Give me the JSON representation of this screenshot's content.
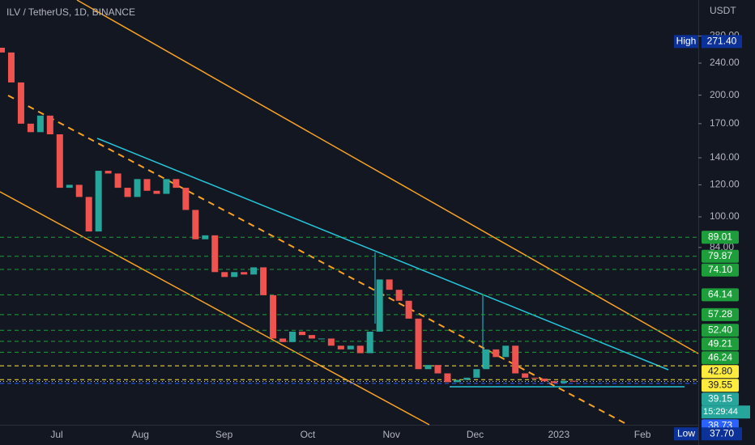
{
  "chart_data": {
    "type": "candlestick",
    "title": "ILV / TetherUS, 1D, BINANCE",
    "currency": "USDT",
    "log_scale": true,
    "up_color": "#26a69a",
    "down_color": "#ef5350",
    "open": [
      262,
      255,
      215,
      170,
      162,
      178,
      160,
      118,
      120,
      112,
      92,
      130,
      128,
      118,
      112,
      124,
      116,
      114,
      124,
      118,
      104,
      88,
      90,
      73,
      71,
      73,
      72,
      75,
      64,
      50,
      49,
      52,
      51,
      50,
      50,
      48,
      47,
      48,
      46,
      52,
      70,
      66,
      62,
      56,
      42,
      43,
      41,
      39,
      39.5,
      40,
      42,
      47,
      45,
      48,
      41,
      40,
      39.8,
      39.2,
      38.8,
      39.3
    ],
    "high": {
      "value": 271.4,
      "label": "271.40"
    },
    "low": {
      "value": 37.7,
      "label": "37.70"
    },
    "close": [
      255,
      215,
      170,
      162,
      178,
      160,
      118,
      120,
      112,
      92,
      130,
      128,
      118,
      112,
      124,
      116,
      114,
      124,
      118,
      104,
      88,
      90,
      73,
      71,
      73,
      72,
      75,
      64,
      50,
      49,
      52,
      51,
      50,
      50,
      48,
      47,
      48,
      46,
      52,
      70,
      66,
      62,
      56,
      42,
      43,
      41,
      39,
      39.5,
      40,
      42,
      47,
      45,
      48,
      41,
      40,
      39.8,
      39.2,
      38.8,
      39.3,
      39.15
    ],
    "xticks": [
      "Jul",
      "Aug",
      "Sep",
      "Oct",
      "Nov",
      "Dec",
      "2023",
      "Feb"
    ],
    "yticks": [
      {
        "value": 280,
        "label": "280.00"
      },
      {
        "value": 240,
        "label": "240.00"
      },
      {
        "value": 200,
        "label": "200.00"
      },
      {
        "value": 170,
        "label": "170.00"
      },
      {
        "value": 140,
        "label": "140.00"
      },
      {
        "value": 120,
        "label": "120.00"
      },
      {
        "value": 100,
        "label": "100.00"
      },
      {
        "value": 84,
        "label": "84.00"
      }
    ],
    "levels": [
      {
        "value": 89.01,
        "label": "89.01",
        "color": "#1e9e3a",
        "text_color": "#ffffff"
      },
      {
        "value": 79.87,
        "label": "79.87",
        "color": "#1e9e3a",
        "text_color": "#ffffff"
      },
      {
        "value": 74.1,
        "label": "74.10",
        "color": "#1e9e3a",
        "text_color": "#ffffff"
      },
      {
        "value": 64.14,
        "label": "64.14",
        "color": "#1e9e3a",
        "text_color": "#ffffff"
      },
      {
        "value": 57.28,
        "label": "57.28",
        "color": "#1e9e3a",
        "text_color": "#ffffff"
      },
      {
        "value": 52.4,
        "label": "52.40",
        "color": "#1e9e3a",
        "text_color": "#ffffff"
      },
      {
        "value": 49.21,
        "label": "49.21",
        "color": "#1e9e3a",
        "text_color": "#ffffff"
      },
      {
        "value": 46.24,
        "label": "46.24",
        "color": "#1e9e3a",
        "text_color": "#ffffff"
      },
      {
        "value": 42.8,
        "label": "42.80",
        "color": "#ffeb3b",
        "text_color": "#131722"
      },
      {
        "value": 39.55,
        "label": "39.55",
        "color": "#ffeb3b",
        "text_color": "#131722"
      },
      {
        "value": 39.15,
        "label": "39.15",
        "color": "#26a69a",
        "text_color": "#ffffff"
      },
      {
        "value": 38.73,
        "label": "38.73",
        "color": "#2962ff",
        "text_color": "#ffffff"
      }
    ],
    "countdown": "15:29:44",
    "high_label": "High",
    "low_label": "Low"
  }
}
